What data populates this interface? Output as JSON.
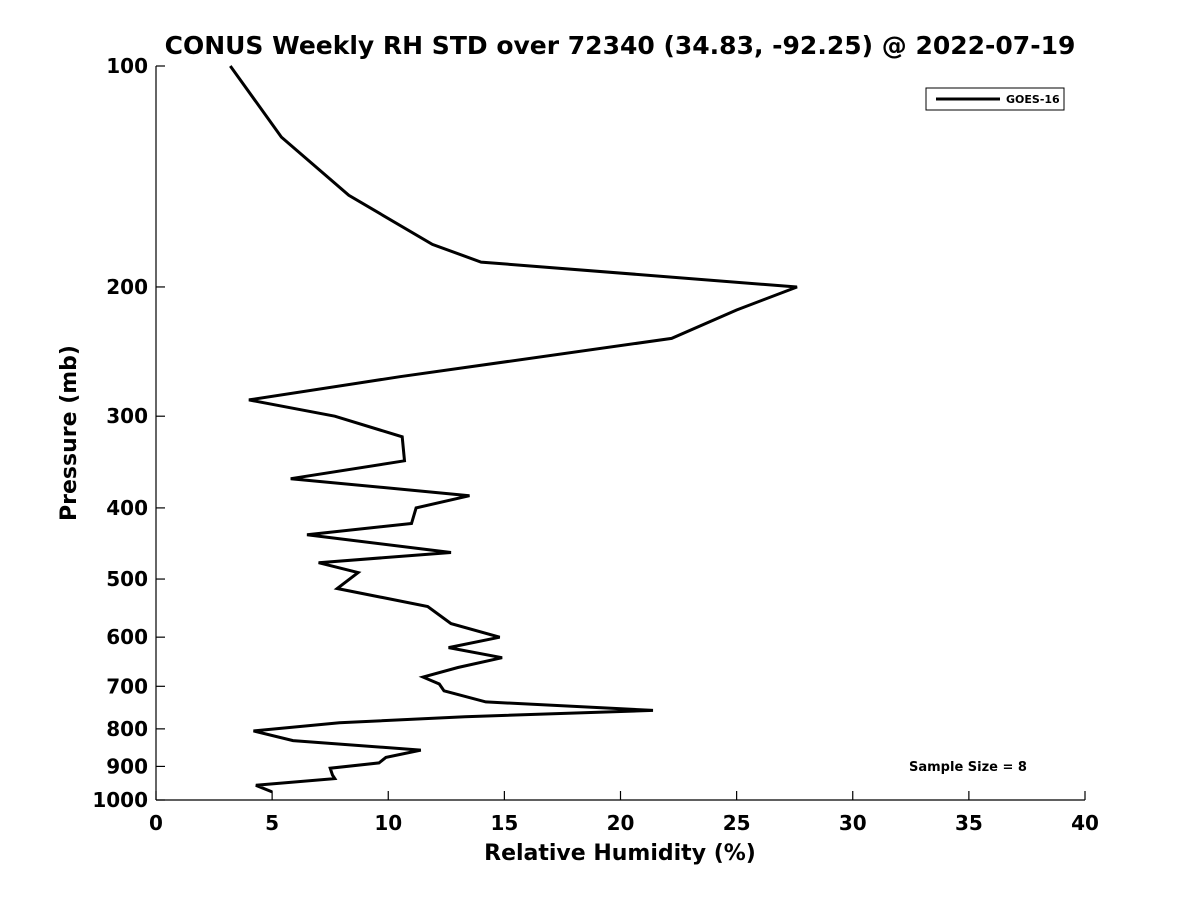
{
  "chart_data": {
    "type": "line",
    "title": "CONUS Weekly RH STD over 72340 (34.83, -92.25) @ 2022-07-19",
    "xlabel": "Relative Humidity (%)",
    "ylabel": "Pressure (mb)",
    "xlim": [
      0,
      40
    ],
    "ylim": [
      100,
      1000
    ],
    "y_scale": "log",
    "y_reversed": true,
    "x_ticks": [
      0,
      5,
      10,
      15,
      20,
      25,
      30,
      35,
      40
    ],
    "y_ticks": [
      100,
      200,
      300,
      400,
      500,
      600,
      700,
      800,
      900,
      1000
    ],
    "grid": false,
    "legend_position": "top-right",
    "annotation": "Sample Size = 8",
    "series": [
      {
        "name": "GOES-16",
        "color": "#000000",
        "points": [
          [
            3.2,
            100
          ],
          [
            5.4,
            125
          ],
          [
            8.3,
            150
          ],
          [
            11.9,
            175
          ],
          [
            14.0,
            185
          ],
          [
            27.6,
            200
          ],
          [
            25.0,
            215
          ],
          [
            22.2,
            235
          ],
          [
            10.5,
            265
          ],
          [
            4.0,
            285
          ],
          [
            7.7,
            300
          ],
          [
            10.6,
            320
          ],
          [
            10.7,
            345
          ],
          [
            5.8,
            365
          ],
          [
            13.5,
            385
          ],
          [
            11.2,
            400
          ],
          [
            11.0,
            420
          ],
          [
            6.5,
            435
          ],
          [
            12.7,
            460
          ],
          [
            7.0,
            475
          ],
          [
            8.7,
            490
          ],
          [
            7.8,
            515
          ],
          [
            11.7,
            545
          ],
          [
            12.7,
            575
          ],
          [
            14.8,
            600
          ],
          [
            12.6,
            620
          ],
          [
            14.9,
            640
          ],
          [
            13.0,
            660
          ],
          [
            11.5,
            680
          ],
          [
            12.2,
            695
          ],
          [
            12.4,
            710
          ],
          [
            14.2,
            735
          ],
          [
            21.4,
            755
          ],
          [
            13.3,
            770
          ],
          [
            7.9,
            785
          ],
          [
            4.2,
            805
          ],
          [
            5.9,
            830
          ],
          [
            11.4,
            855
          ],
          [
            9.9,
            875
          ],
          [
            9.6,
            890
          ],
          [
            7.5,
            905
          ],
          [
            7.6,
            925
          ],
          [
            7.7,
            935
          ],
          [
            4.3,
            955
          ],
          [
            5.0,
            975
          ]
        ]
      }
    ]
  }
}
